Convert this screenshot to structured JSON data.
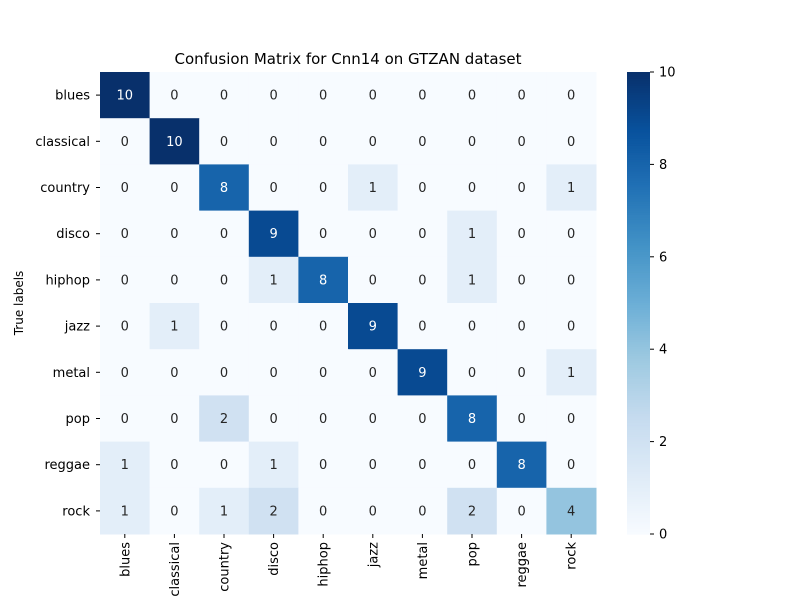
{
  "chart_data": {
    "type": "heatmap",
    "title": "Confusion Matrix for Cnn14 on GTZAN dataset",
    "ylabel": "True labels",
    "xlabel": "",
    "row_labels": [
      "blues",
      "classical",
      "country",
      "disco",
      "hiphop",
      "jazz",
      "metal",
      "pop",
      "reggae",
      "rock"
    ],
    "col_labels": [
      "blues",
      "classical",
      "country",
      "disco",
      "hiphop",
      "jazz",
      "metal",
      "pop",
      "reggae",
      "rock"
    ],
    "values": [
      [
        10,
        0,
        0,
        0,
        0,
        0,
        0,
        0,
        0,
        0
      ],
      [
        0,
        10,
        0,
        0,
        0,
        0,
        0,
        0,
        0,
        0
      ],
      [
        0,
        0,
        8,
        0,
        0,
        1,
        0,
        0,
        0,
        1
      ],
      [
        0,
        0,
        0,
        9,
        0,
        0,
        0,
        1,
        0,
        0
      ],
      [
        0,
        0,
        0,
        1,
        8,
        0,
        0,
        1,
        0,
        0
      ],
      [
        0,
        1,
        0,
        0,
        0,
        9,
        0,
        0,
        0,
        0
      ],
      [
        0,
        0,
        0,
        0,
        0,
        0,
        9,
        0,
        0,
        1
      ],
      [
        0,
        0,
        2,
        0,
        0,
        0,
        0,
        8,
        0,
        0
      ],
      [
        1,
        0,
        0,
        1,
        0,
        0,
        0,
        0,
        8,
        0
      ],
      [
        1,
        0,
        1,
        2,
        0,
        0,
        0,
        2,
        0,
        4
      ]
    ],
    "colorbar": {
      "min": 0,
      "max": 10,
      "ticks": [
        0,
        2,
        4,
        6,
        8,
        10
      ]
    },
    "colormap": "Blues",
    "colors": {
      "low": "#f7fbff",
      "high": "#08306b"
    }
  }
}
